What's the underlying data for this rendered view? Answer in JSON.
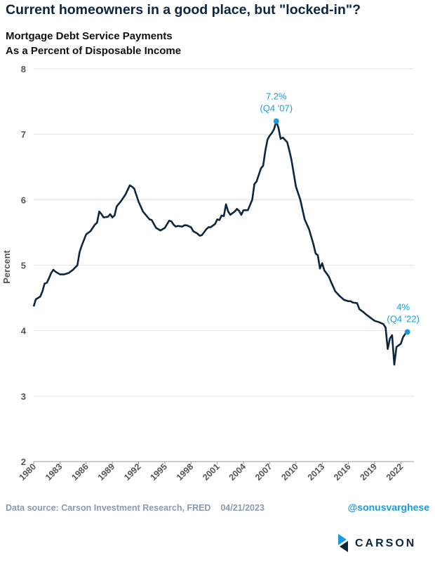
{
  "chart_data": {
    "type": "line",
    "title": "Current homeowners in a good place, but \"locked-in\"?",
    "subtitle": [
      "Mortgage Debt Service Payments",
      "As a Percent of Disposable Income"
    ],
    "ylabel": "Percent",
    "source": "Data source: Carson Investment Research, FRED    04/21/2023",
    "handle": "@sonusvarghese",
    "logo": "CARSON",
    "x": [
      1980,
      1980.25,
      1980.5,
      1980.75,
      1981,
      1981.25,
      1981.5,
      1981.75,
      1982,
      1982.25,
      1982.5,
      1982.75,
      1983,
      1983.5,
      1984,
      1984.5,
      1985,
      1985.25,
      1985.5,
      1986,
      1986.5,
      1987,
      1987.25,
      1987.5,
      1987.75,
      1988,
      1988.5,
      1988.75,
      1989,
      1989.25,
      1989.5,
      1990,
      1990.5,
      1990.75,
      1991,
      1991.25,
      1991.5,
      1992,
      1992.5,
      1993,
      1993.25,
      1993.5,
      1994,
      1994.5,
      1995,
      1995.5,
      1995.75,
      1996,
      1996.25,
      1996.5,
      1997,
      1997.25,
      1997.5,
      1998,
      1998.25,
      1998.75,
      1999,
      1999.25,
      1999.75,
      2000,
      2000.25,
      2000.75,
      2001,
      2001.25,
      2001.5,
      2001.75,
      2002,
      2002.25,
      2002.5,
      2003,
      2003.25,
      2003.5,
      2003.75,
      2004,
      2004.5,
      2005,
      2005.25,
      2005.5,
      2006,
      2006.25,
      2006.5,
      2006.75,
      2007,
      2007.25,
      2007.5,
      2007.75,
      2008,
      2008.25,
      2008.5,
      2009,
      2009.25,
      2009.5,
      2010,
      2010.5,
      2011,
      2011.5,
      2012,
      2012.25,
      2012.5,
      2012.75,
      2013,
      2013.25,
      2013.75,
      2014,
      2014.5,
      2015,
      2015.25,
      2015.5,
      2016,
      2016.25,
      2016.5,
      2017,
      2017.25,
      2017.75,
      2018,
      2018.5,
      2019,
      2019.5,
      2020,
      2020.25,
      2020.5,
      2020.75,
      2021,
      2021.25,
      2021.5,
      2022,
      2022.25,
      2022.5,
      2022.75
    ],
    "series": [
      {
        "name": "Mortgage Debt Service Payments",
        "color": "#0d2640",
        "values": [
          4.37,
          4.48,
          4.5,
          4.52,
          4.6,
          4.72,
          4.73,
          4.8,
          4.88,
          4.93,
          4.9,
          4.88,
          4.86,
          4.86,
          4.88,
          4.93,
          5.0,
          5.2,
          5.3,
          5.47,
          5.52,
          5.62,
          5.65,
          5.82,
          5.78,
          5.73,
          5.74,
          5.78,
          5.73,
          5.76,
          5.9,
          5.98,
          6.08,
          6.15,
          6.22,
          6.2,
          6.17,
          5.97,
          5.82,
          5.74,
          5.7,
          5.69,
          5.57,
          5.53,
          5.57,
          5.68,
          5.67,
          5.62,
          5.59,
          5.6,
          5.59,
          5.61,
          5.61,
          5.58,
          5.52,
          5.48,
          5.45,
          5.46,
          5.55,
          5.58,
          5.58,
          5.63,
          5.7,
          5.69,
          5.76,
          5.75,
          5.93,
          5.82,
          5.77,
          5.82,
          5.86,
          5.83,
          5.77,
          5.84,
          5.84,
          6.0,
          6.24,
          6.28,
          6.48,
          6.52,
          6.75,
          6.92,
          6.98,
          7.02,
          7.08,
          7.2,
          7.1,
          6.93,
          6.95,
          6.88,
          6.75,
          6.6,
          6.2,
          6.0,
          5.7,
          5.55,
          5.32,
          5.18,
          5.15,
          4.95,
          5.03,
          4.92,
          4.83,
          4.75,
          4.6,
          4.53,
          4.5,
          4.47,
          4.45,
          4.45,
          4.43,
          4.42,
          4.33,
          4.28,
          4.25,
          4.2,
          4.15,
          4.13,
          4.1,
          4.05,
          3.72,
          3.88,
          3.93,
          3.48,
          3.75,
          3.8,
          3.9,
          3.95,
          3.98
        ]
      }
    ],
    "annotations": [
      {
        "text": [
          "7.2%",
          "(Q4 '07)"
        ],
        "x": 2007.75,
        "y": 7.2,
        "color": "#1a9be0"
      },
      {
        "text": [
          "4%",
          "(Q4 '22)"
        ],
        "x": 2022.75,
        "y": 3.98,
        "color": "#1a9be0"
      }
    ],
    "xlim": [
      1980,
      2023.5
    ],
    "xticks": [
      1980,
      1983,
      1986,
      1989,
      1992,
      1995,
      1998,
      2001,
      2004,
      2007,
      2010,
      2013,
      2016,
      2019,
      2022
    ],
    "ylim": [
      2,
      8
    ],
    "yticks": [
      2,
      3,
      4,
      5,
      6,
      7,
      8
    ],
    "grid": true
  }
}
